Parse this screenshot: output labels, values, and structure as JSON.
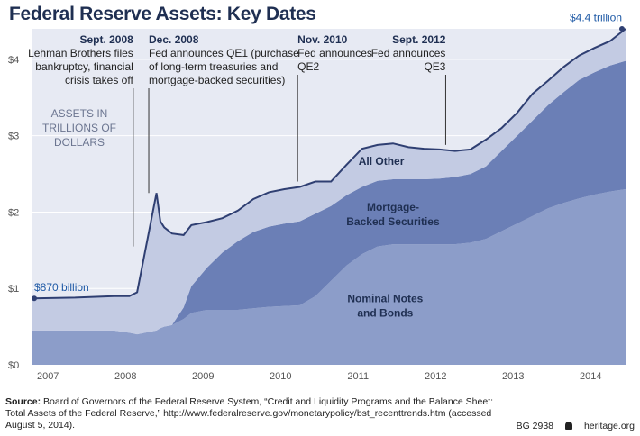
{
  "title": "Federal Reserve Assets: Key Dates",
  "source": {
    "label": "Source:",
    "text": "Board of Governors of the Federal Reserve System, “Credit and Liquidity Programs and the Balance Sheet: Total Assets of the Federal Reserve,” http://www.federalreserve.gov/monetarypolicy/bst_recenttrends.htm (accessed August 5, 2014)."
  },
  "code": "BG 2938",
  "site": "heritage.org",
  "colors": {
    "background": "#e7eaf3",
    "gridline": "#ffffff",
    "notes_bonds": "#8c9dc9",
    "mbs": "#6b7fb6",
    "all_other": "#c3cbe3",
    "total_line": "#2f3f72",
    "title": "#1f2f52",
    "highlight_text": "#1f5aa6"
  },
  "chart_data": {
    "type": "area",
    "title": "",
    "ylabel": "ASSETS IN TRILLIONS OF DOLLARS",
    "ylabel_lines": [
      "ASSETS IN",
      "TRILLIONS OF",
      "DOLLARS"
    ],
    "ylim": [
      0,
      4.4
    ],
    "yticks": [
      0,
      1,
      2,
      3,
      4
    ],
    "ytick_labels": [
      "$0",
      "$1",
      "$2",
      "$3",
      "$4"
    ],
    "xlim": [
      2006.95,
      2014.6
    ],
    "xticks": [
      2007,
      2008,
      2009,
      2010,
      2011,
      2012,
      2013,
      2014
    ],
    "xtick_labels": [
      "2007",
      "2008",
      "2009",
      "2010",
      "2011",
      "2012",
      "2013",
      "2014"
    ],
    "grid": true,
    "stacked": true,
    "x": [
      2006.95,
      2007.5,
      2008.0,
      2008.2,
      2008.3,
      2008.4,
      2008.55,
      2008.6,
      2008.65,
      2008.75,
      2008.9,
      2009.0,
      2009.2,
      2009.4,
      2009.6,
      2009.8,
      2010.0,
      2010.2,
      2010.4,
      2010.6,
      2010.8,
      2011.0,
      2011.2,
      2011.4,
      2011.6,
      2011.8,
      2012.0,
      2012.2,
      2012.4,
      2012.6,
      2012.8,
      2013.0,
      2013.2,
      2013.4,
      2013.6,
      2013.8,
      2014.0,
      2014.2,
      2014.4,
      2014.6
    ],
    "series": [
      {
        "name": "Nominal Notes and Bonds",
        "values": [
          0.45,
          0.45,
          0.45,
          0.42,
          0.4,
          0.42,
          0.45,
          0.48,
          0.5,
          0.52,
          0.6,
          0.68,
          0.72,
          0.72,
          0.72,
          0.74,
          0.76,
          0.77,
          0.78,
          0.9,
          1.1,
          1.3,
          1.45,
          1.55,
          1.58,
          1.58,
          1.58,
          1.58,
          1.58,
          1.6,
          1.65,
          1.75,
          1.85,
          1.95,
          2.05,
          2.12,
          2.18,
          2.23,
          2.27,
          2.3
        ]
      },
      {
        "name": "Mortgage-Backed Securities",
        "values": [
          0.0,
          0.0,
          0.0,
          0.0,
          0.0,
          0.0,
          0.0,
          0.0,
          0.0,
          0.0,
          0.15,
          0.35,
          0.55,
          0.75,
          0.9,
          1.0,
          1.05,
          1.08,
          1.1,
          1.08,
          0.98,
          0.92,
          0.88,
          0.86,
          0.85,
          0.85,
          0.85,
          0.86,
          0.88,
          0.9,
          0.95,
          1.05,
          1.15,
          1.25,
          1.35,
          1.45,
          1.55,
          1.6,
          1.65,
          1.68
        ]
      },
      {
        "name": "All Other",
        "values": [
          0.42,
          0.43,
          0.45,
          0.48,
          0.55,
          1.05,
          1.8,
          1.4,
          1.3,
          1.2,
          0.95,
          0.8,
          0.6,
          0.45,
          0.4,
          0.43,
          0.45,
          0.45,
          0.45,
          0.42,
          0.32,
          0.4,
          0.5,
          0.47,
          0.47,
          0.42,
          0.4,
          0.38,
          0.34,
          0.32,
          0.35,
          0.3,
          0.3,
          0.35,
          0.32,
          0.33,
          0.32,
          0.32,
          0.32,
          0.42
        ]
      }
    ],
    "series_labels": [
      {
        "series": "All Other",
        "lines": [
          "All Other"
        ],
        "x": 2011.45,
        "y": 2.62
      },
      {
        "series": "Mortgage-Backed Securities",
        "lines": [
          "Mortgage-",
          "Backed Securities"
        ],
        "x": 2011.6,
        "y": 2.02
      },
      {
        "series": "Nominal Notes and Bonds",
        "lines": [
          "Nominal Notes",
          "and Bonds"
        ],
        "x": 2011.5,
        "y": 0.82
      }
    ],
    "annotations": [
      {
        "date": "Sept. 2008",
        "lines": [
          "Lehman Brothers files",
          "bankruptcy, financial",
          "crisis takes off"
        ],
        "x": 2008.25,
        "line_to": 1.55,
        "align": "end"
      },
      {
        "date": "Dec. 2008",
        "lines": [
          "Fed announces QE1 (purchase",
          "of long-term treasuries and",
          "mortgage-backed securities)"
        ],
        "x": 2008.45,
        "line_to": 2.25,
        "align": "start"
      },
      {
        "date": "Nov. 2010",
        "lines": [
          "Fed announces",
          "QE2"
        ],
        "x": 2010.37,
        "line_to": 2.4,
        "align": "start"
      },
      {
        "date": "Sept. 2012",
        "lines": [
          "Fed announces",
          "QE3"
        ],
        "x": 2012.28,
        "line_to": 2.88,
        "align": "end"
      }
    ],
    "endpoint_labels": [
      {
        "text": "$870 billion",
        "x": 2006.95,
        "y": 0.87
      },
      {
        "text": "$4.4 trillion",
        "x": 2014.55,
        "y": 4.38
      }
    ]
  }
}
